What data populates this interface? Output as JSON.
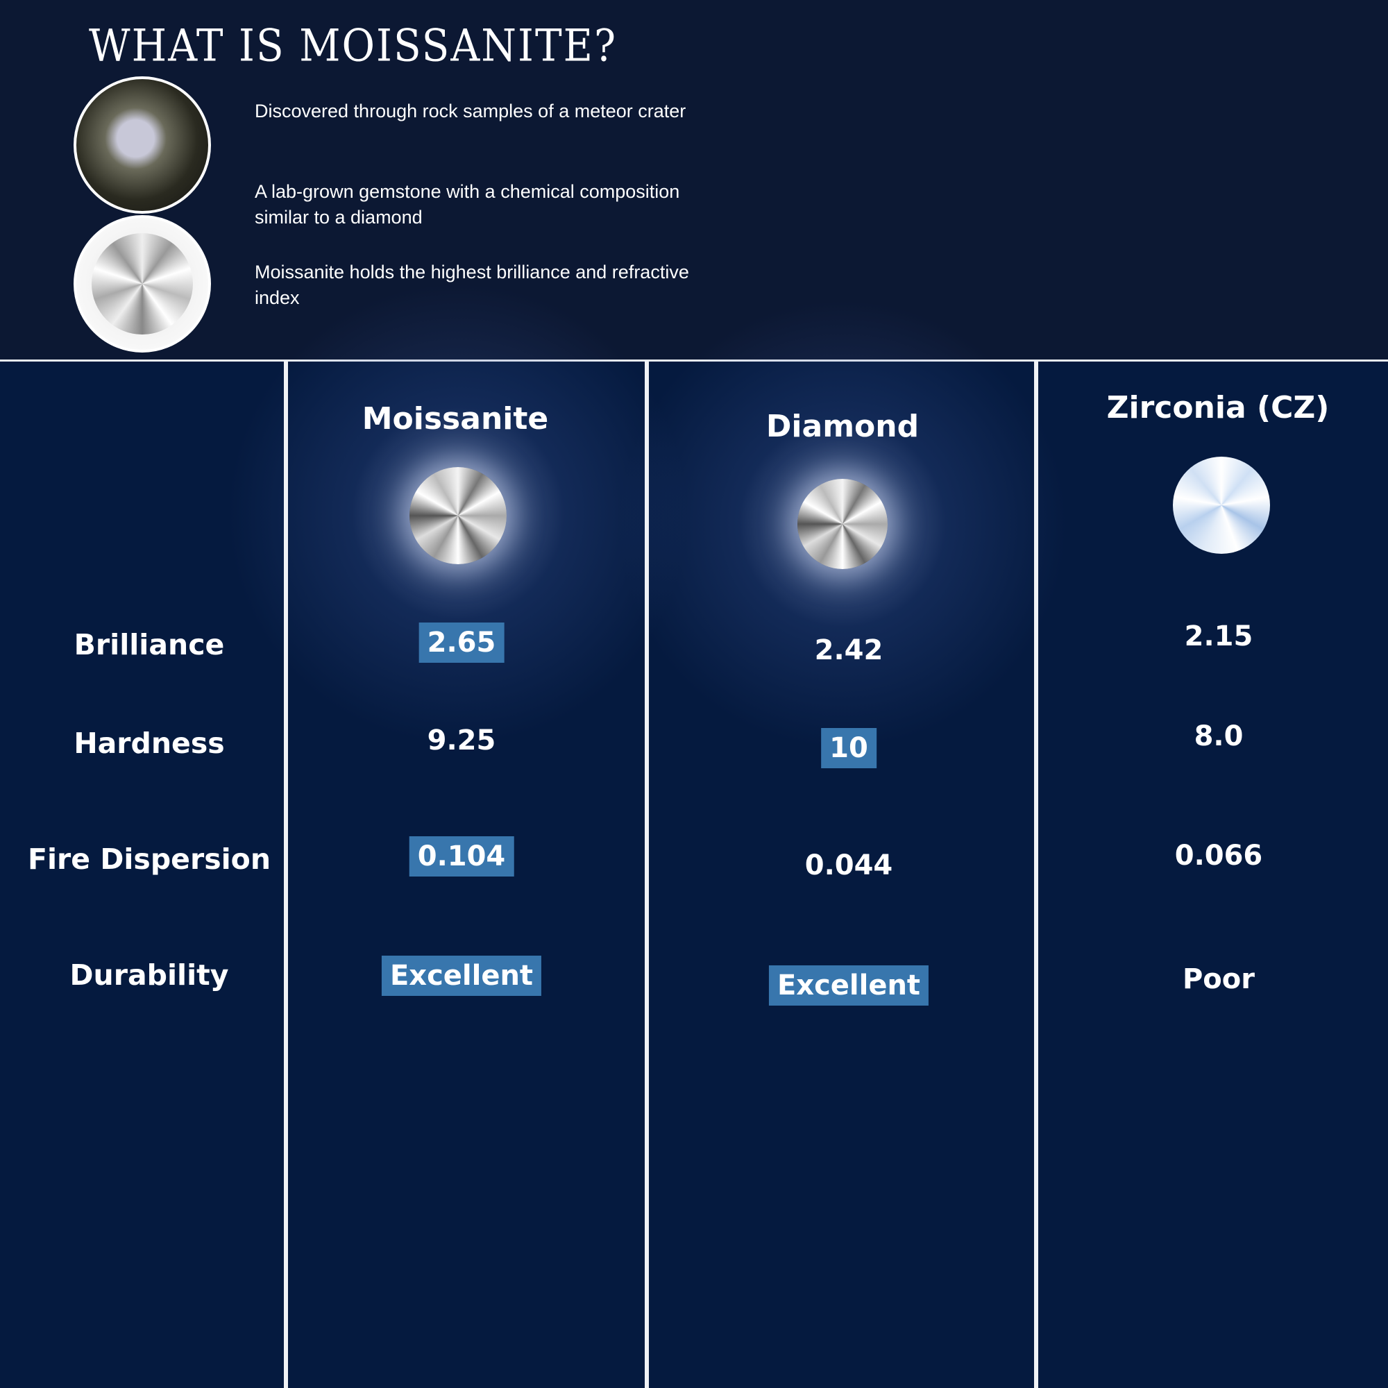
{
  "header": {
    "title": "WHAT IS MOISSANITE?",
    "bullets": [
      "Discovered through rock samples of a meteor crater",
      "A lab-grown gemstone with a chemical composition similar to a diamond",
      "Moissanite holds the highest brilliance and refractive index"
    ]
  },
  "table": {
    "columns": [
      "Moissanite",
      "Diamond",
      "Zirconia (CZ)"
    ],
    "rows": [
      {
        "label": "Brilliance",
        "values": [
          "2.65",
          "2.42",
          "2.15"
        ],
        "highlight": [
          true,
          false,
          false
        ]
      },
      {
        "label": "Hardness",
        "values": [
          "9.25",
          "10",
          "8.0"
        ],
        "highlight": [
          false,
          true,
          false
        ]
      },
      {
        "label": "Fire Dispersion",
        "values": [
          "0.104",
          "0.044",
          "0.066"
        ],
        "highlight": [
          true,
          false,
          false
        ]
      },
      {
        "label": "Durability",
        "values": [
          "Excellent",
          "Excellent",
          "Poor"
        ],
        "highlight": [
          true,
          true,
          false
        ]
      }
    ]
  },
  "colors": {
    "background": "#051a3f",
    "header_background": "#0c1833",
    "highlight": "#3876ad"
  }
}
